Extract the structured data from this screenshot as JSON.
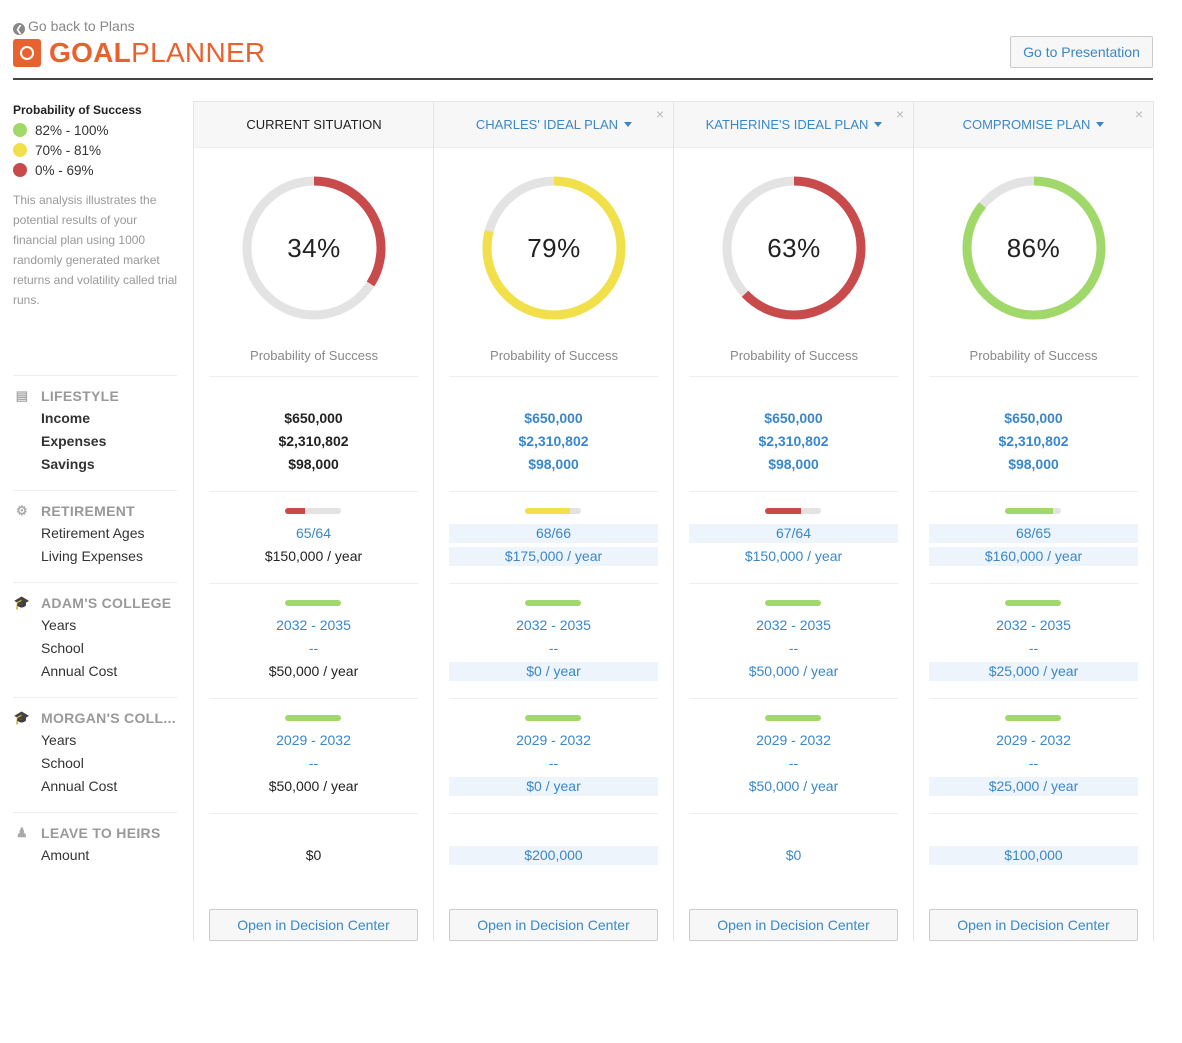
{
  "header": {
    "back_label": "Go back to Plans",
    "logo_bold": "GOAL",
    "logo_light": "PLANNER",
    "presentation_button": "Go to Presentation"
  },
  "colors": {
    "green": "#a0d96a",
    "yellow": "#f2e04a",
    "red": "#c84a4a",
    "track": "#e3e3e3",
    "accent": "#3a87c8",
    "brand": "#e8622f"
  },
  "legend": {
    "title": "Probability of Success",
    "items": [
      {
        "label": "82% - 100%",
        "color": "#a0d96a"
      },
      {
        "label": "70% - 81%",
        "color": "#f2e04a"
      },
      {
        "label": "0% - 69%",
        "color": "#c84a4a"
      }
    ],
    "description": "This analysis illustrates the potential results of your financial plan using 1000 randomly generated market returns and volatility called trial runs."
  },
  "sections": [
    {
      "title": "LIFESTYLE",
      "icon": "money-icon",
      "rows": [
        "Income",
        "Expenses",
        "Savings"
      ]
    },
    {
      "title": "RETIREMENT",
      "icon": "gear-icon",
      "rows": [
        "Retirement Ages",
        "Living Expenses"
      ]
    },
    {
      "title": "ADAM'S COLLEGE",
      "icon": "graduation-cap-icon",
      "rows": [
        "Years",
        "School",
        "Annual Cost"
      ]
    },
    {
      "title": "MORGAN'S COLL...",
      "icon": "graduation-cap-icon",
      "rows": [
        "Years",
        "School",
        "Annual Cost"
      ]
    },
    {
      "title": "LEAVE TO HEIRS",
      "icon": "users-icon",
      "rows": [
        "Amount"
      ]
    }
  ],
  "prob_label": "Probability of Success",
  "open_button": "Open in Decision Center",
  "columns": [
    {
      "title": "CURRENT SITUATION",
      "plan": false,
      "probability": 34,
      "percent_label": "34%",
      "color": "#c84a4a",
      "lifestyle": [
        "$650,000",
        "$2,310,802",
        "$98,000"
      ],
      "retirement": {
        "progress": 35,
        "color": "#c84a4a",
        "ages": "65/64",
        "living": "$150,000 / year"
      },
      "adam": {
        "progress": 100,
        "years": "2032 - 2035",
        "school": "--",
        "cost": "$50,000 / year"
      },
      "morgan": {
        "progress": 100,
        "years": "2029 - 2032",
        "school": "--",
        "cost": "$50,000 / year"
      },
      "heirs": "$0",
      "hl": []
    },
    {
      "title": "CHARLES' IDEAL PLAN",
      "plan": true,
      "probability": 79,
      "percent_label": "79%",
      "color": "#f2e04a",
      "lifestyle": [
        "$650,000",
        "$2,310,802",
        "$98,000"
      ],
      "retirement": {
        "progress": 80,
        "color": "#f2e04a",
        "ages": "68/66",
        "living": "$175,000 / year"
      },
      "adam": {
        "progress": 100,
        "years": "2032 - 2035",
        "school": "--",
        "cost": "$0 / year"
      },
      "morgan": {
        "progress": 100,
        "years": "2029 - 2032",
        "school": "--",
        "cost": "$0 / year"
      },
      "heirs": "$200,000",
      "hl": [
        "ages",
        "living",
        "adamcost",
        "morgancost",
        "heirs"
      ]
    },
    {
      "title": "KATHERINE'S IDEAL PLAN",
      "plan": true,
      "probability": 63,
      "percent_label": "63%",
      "color": "#c84a4a",
      "lifestyle": [
        "$650,000",
        "$2,310,802",
        "$98,000"
      ],
      "retirement": {
        "progress": 65,
        "color": "#c84a4a",
        "ages": "67/64",
        "living": "$150,000 / year"
      },
      "adam": {
        "progress": 100,
        "years": "2032 - 2035",
        "school": "--",
        "cost": "$50,000 / year"
      },
      "morgan": {
        "progress": 100,
        "years": "2029 - 2032",
        "school": "--",
        "cost": "$50,000 / year"
      },
      "heirs": "$0",
      "hl": [
        "ages"
      ]
    },
    {
      "title": "COMPROMISE PLAN",
      "plan": true,
      "probability": 86,
      "percent_label": "86%",
      "color": "#a0d96a",
      "lifestyle": [
        "$650,000",
        "$2,310,802",
        "$98,000"
      ],
      "retirement": {
        "progress": 85,
        "color": "#a0d96a",
        "ages": "68/65",
        "living": "$160,000 / year"
      },
      "adam": {
        "progress": 100,
        "years": "2032 - 2035",
        "school": "--",
        "cost": "$25,000 / year"
      },
      "morgan": {
        "progress": 100,
        "years": "2029 - 2032",
        "school": "--",
        "cost": "$25,000 / year"
      },
      "heirs": "$100,000",
      "hl": [
        "ages",
        "living",
        "adamcost",
        "morgancost",
        "heirs"
      ]
    }
  ]
}
